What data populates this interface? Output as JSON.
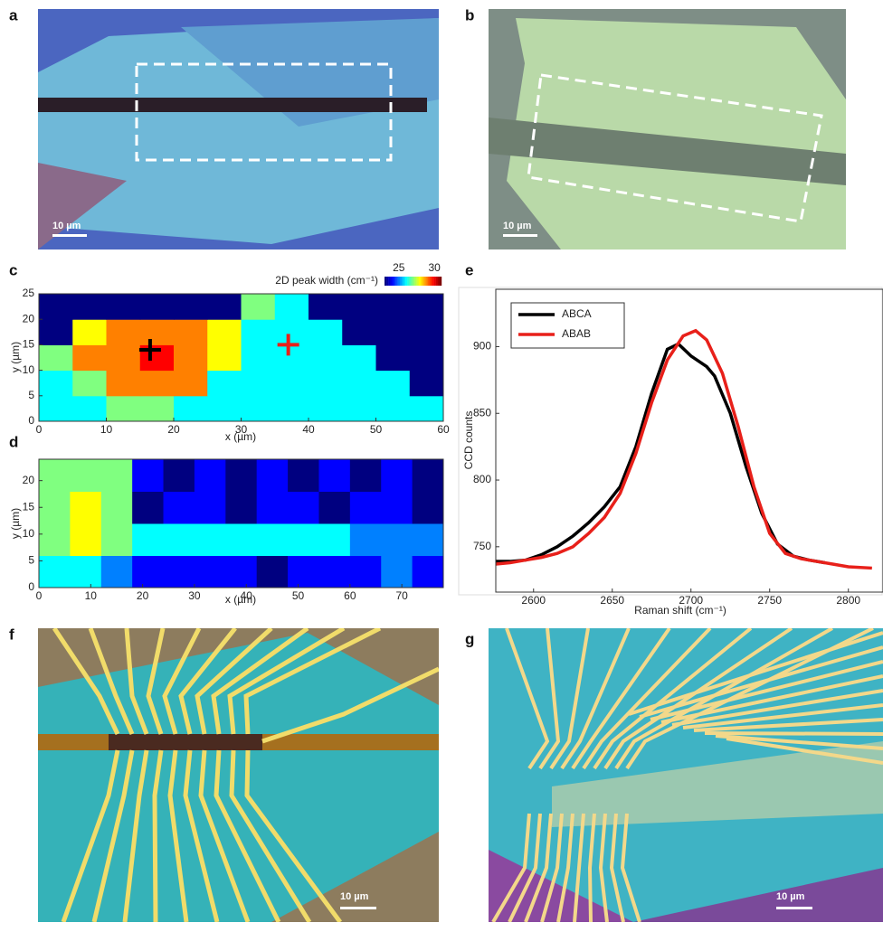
{
  "panel_labels": [
    "a",
    "b",
    "c",
    "d",
    "e",
    "f",
    "g"
  ],
  "scale_bar_labels": [
    "10 µm",
    "10 µm",
    "10 µm",
    "10 µm"
  ],
  "chart_data": [
    {
      "type": "heatmap",
      "xlabel": "x (µm)",
      "ylabel": "y (µm)",
      "colorbar_label": "2D peak width (cm⁻¹)",
      "clim": [
        23,
        31
      ],
      "cticks": [
        25,
        30
      ],
      "xlim": [
        0,
        60
      ],
      "xticks": [
        0,
        10,
        20,
        30,
        40,
        50,
        60
      ],
      "ylim": [
        0,
        25
      ],
      "yticks": [
        0,
        5,
        10,
        15,
        20,
        25
      ],
      "z": [
        [
          26,
          26,
          27,
          27,
          26,
          26,
          26,
          26,
          26,
          26,
          26,
          26
        ],
        [
          26,
          27,
          29,
          29,
          29,
          26,
          26,
          26,
          26,
          26,
          26,
          23
        ],
        [
          27,
          29,
          29,
          30,
          29,
          28,
          26,
          26,
          26,
          26,
          23,
          23
        ],
        [
          23,
          28,
          29,
          29,
          29,
          28,
          26,
          26,
          26,
          23,
          23,
          23
        ],
        [
          23,
          23,
          23,
          23,
          23,
          23,
          27,
          26,
          23,
          23,
          23,
          23
        ]
      ],
      "markers": [
        {
          "x": 16.5,
          "y": 14,
          "color": "#000000"
        },
        {
          "x": 37,
          "y": 15,
          "color": "#e8201a"
        }
      ]
    },
    {
      "type": "heatmap",
      "xlabel": "x (µm)",
      "ylabel": "y (µm)",
      "clim": [
        23,
        31
      ],
      "xlim": [
        0,
        78
      ],
      "xticks": [
        0,
        10,
        20,
        30,
        40,
        50,
        60,
        70
      ],
      "ylim": [
        0,
        24
      ],
      "yticks": [
        0,
        5,
        10,
        15,
        20
      ],
      "z": [
        [
          26,
          26,
          25,
          24,
          24,
          24,
          24,
          23,
          24,
          24,
          24,
          25,
          24
        ],
        [
          27,
          28,
          27,
          26,
          26,
          26,
          26,
          26,
          26,
          26,
          25,
          25,
          25
        ],
        [
          27,
          28,
          27,
          23,
          24,
          24,
          23,
          24,
          24,
          23,
          24,
          24,
          23
        ],
        [
          27,
          27,
          27,
          24,
          23,
          24,
          23,
          24,
          23,
          24,
          23,
          24,
          23
        ]
      ]
    },
    {
      "type": "line",
      "xlabel": "Raman shift (cm⁻¹)",
      "ylabel": "CCD counts",
      "xlim": [
        2576,
        2822
      ],
      "xticks": [
        2600,
        2650,
        2700,
        2750,
        2800
      ],
      "ylim": [
        716,
        943
      ],
      "yticks": [
        750,
        800,
        850,
        900
      ],
      "legend": "upper-left",
      "series": [
        {
          "name": "ABCA",
          "color": "#000000",
          "x": [
            2576,
            2585,
            2595,
            2605,
            2615,
            2625,
            2635,
            2645,
            2655,
            2665,
            2675,
            2685,
            2692,
            2700,
            2710,
            2715,
            2725,
            2735,
            2745,
            2755,
            2765,
            2775,
            2785
          ],
          "values": [
            739,
            739,
            740,
            744,
            750,
            758,
            768,
            780,
            795,
            825,
            865,
            898,
            902,
            893,
            885,
            878,
            850,
            810,
            775,
            752,
            743,
            740,
            738
          ]
        },
        {
          "name": "ABAB",
          "color": "#e8201a",
          "x": [
            2576,
            2585,
            2595,
            2605,
            2615,
            2625,
            2635,
            2645,
            2655,
            2665,
            2675,
            2685,
            2695,
            2703,
            2710,
            2720,
            2730,
            2740,
            2750,
            2760,
            2770,
            2780,
            2790,
            2800,
            2815
          ],
          "values": [
            737,
            738,
            740,
            742,
            745,
            750,
            760,
            772,
            790,
            820,
            858,
            890,
            908,
            912,
            905,
            880,
            840,
            795,
            760,
            745,
            741,
            739,
            737,
            735,
            734
          ]
        }
      ]
    }
  ]
}
